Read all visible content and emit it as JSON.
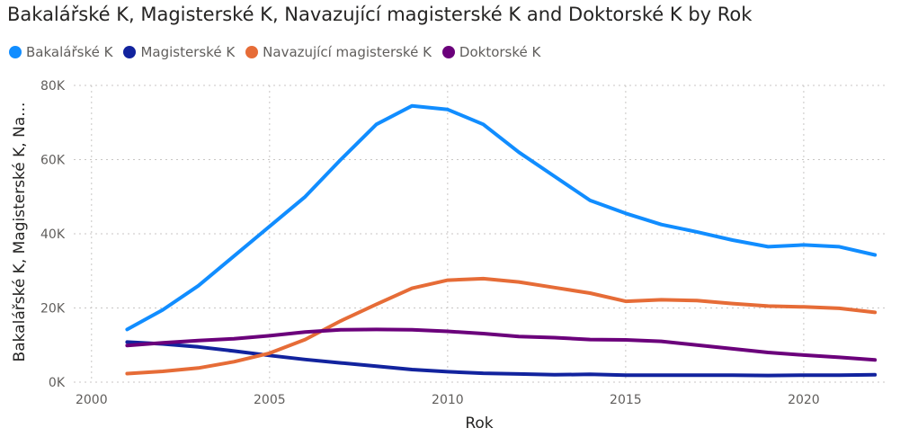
{
  "chart_data": {
    "type": "line",
    "title": "Bakalářské K, Magisterské K, Navazující magisterské K and Doktorské K by Rok",
    "xlabel": "Rok",
    "ylabel": "Bakalářské K, Magisterské K, Na...",
    "xlim": [
      1999.5,
      2022.3
    ],
    "ylim": [
      0,
      80000
    ],
    "x_ticks": [
      2000,
      2005,
      2010,
      2015,
      2020
    ],
    "y_ticks": [
      {
        "value": 0,
        "label": "0K"
      },
      {
        "value": 20000,
        "label": "20K"
      },
      {
        "value": 40000,
        "label": "40K"
      },
      {
        "value": 60000,
        "label": "60K"
      },
      {
        "value": 80000,
        "label": "80K"
      }
    ],
    "grid": true,
    "legend_position": "top-left",
    "x": [
      2001,
      2002,
      2003,
      2004,
      2005,
      2006,
      2007,
      2008,
      2009,
      2010,
      2011,
      2012,
      2013,
      2014,
      2015,
      2016,
      2017,
      2018,
      2019,
      2020,
      2021,
      2022
    ],
    "series": [
      {
        "name": "Bakalářské K",
        "color": "#118dff",
        "values": [
          14200,
          19500,
          26000,
          34000,
          42000,
          50000,
          60000,
          69500,
          74500,
          73500,
          69500,
          62000,
          55500,
          49000,
          45500,
          42500,
          40500,
          38300,
          36500,
          37000,
          36500,
          34300
        ]
      },
      {
        "name": "Magisterské K",
        "color": "#12239e",
        "values": [
          10800,
          10300,
          9500,
          8400,
          7200,
          6100,
          5200,
          4300,
          3400,
          2800,
          2400,
          2200,
          2000,
          2100,
          1900,
          1900,
          1900,
          1900,
          1800,
          1900,
          1900,
          2000
        ]
      },
      {
        "name": "Navazující magisterské K",
        "color": "#e66c37",
        "values": [
          2300,
          2900,
          3800,
          5500,
          7800,
          11500,
          16500,
          21000,
          25300,
          27500,
          27900,
          27000,
          25500,
          24000,
          21800,
          22200,
          22000,
          21200,
          20500,
          20300,
          19900,
          18800
        ]
      },
      {
        "name": "Doktorské K",
        "color": "#6b007b",
        "values": [
          9900,
          10600,
          11200,
          11700,
          12500,
          13500,
          14100,
          14200,
          14100,
          13700,
          13100,
          12300,
          12000,
          11500,
          11400,
          11000,
          10000,
          9000,
          8000,
          7300,
          6700,
          6000
        ]
      }
    ]
  }
}
